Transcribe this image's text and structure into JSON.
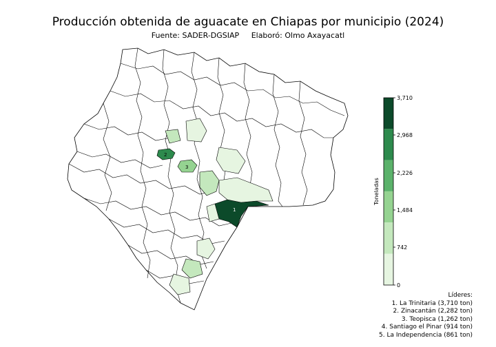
{
  "title": "Producción obtenida de aguacate en Chiapas por municipio (2024)",
  "source": "Fuente: SADER-DGSIAP",
  "author": "Elaboró: Olmo Axayacatl",
  "colorbar": {
    "label": "Toneladas",
    "ticks": [
      "3,710",
      "2,968",
      "2,226",
      "1,484",
      "742",
      "0"
    ],
    "min": 0,
    "max": 3710,
    "colors": [
      "#e6f5e1",
      "#c4e8bd",
      "#95d391",
      "#5bb26b",
      "#2d8a4d",
      "#0c4a2a"
    ]
  },
  "leaders": {
    "heading": "Líderes:",
    "items": [
      "1. La Trinitaria (3,710 ton)",
      "2. Zinacantán (2,282 ton)",
      "3. Teopisca (1,262 ton)",
      "4. Santiago el Pinar (914 ton)",
      "5. La Independencia (861 ton)"
    ]
  },
  "map_labels": [
    "1",
    "2",
    "3"
  ],
  "chart_data": {
    "type": "choropleth",
    "unit": "ton",
    "values": [
      {
        "municipio": "La Trinitaria",
        "ton": 3710
      },
      {
        "municipio": "Zinacantán",
        "ton": 2282
      },
      {
        "municipio": "Teopisca",
        "ton": 1262
      },
      {
        "municipio": "Santiago el Pinar",
        "ton": 914
      },
      {
        "municipio": "La Independencia",
        "ton": 861
      }
    ]
  }
}
